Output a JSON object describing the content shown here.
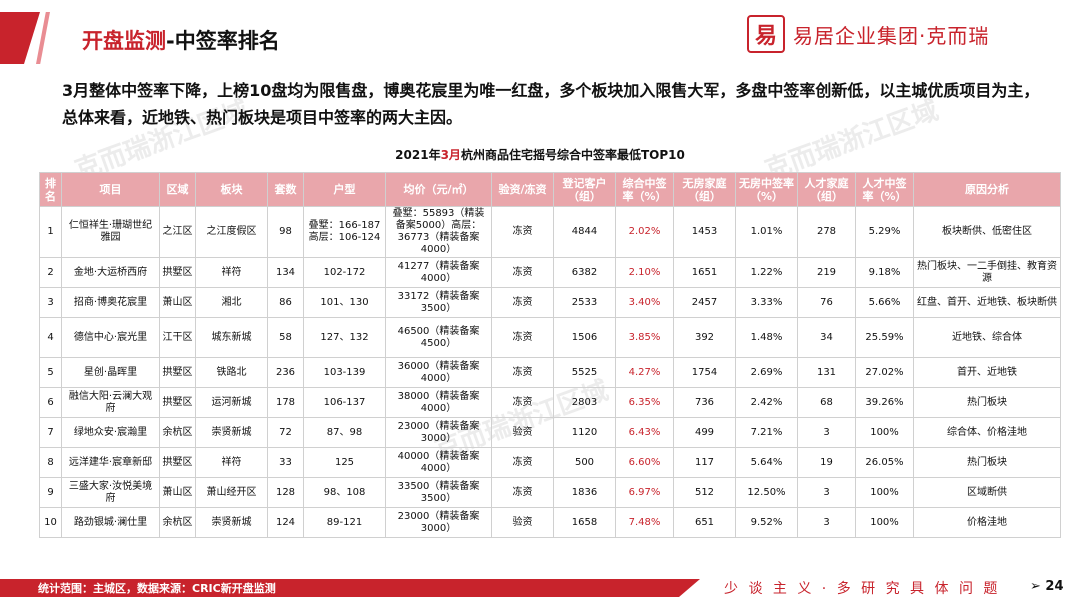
{
  "header": {
    "title_red": "开盘监测",
    "title_black": "-中签率排名",
    "logo_mark": "易",
    "logo_text": "易居企业集团·克而瑞"
  },
  "summary": "3月整体中签率下降，上榜10盘均为限售盘，博奥花宸里为唯一红盘，多个板块加入限售大军，多盘中签率创新低，以主城优质项目为主，总体来看，近地铁、热门板块是项目中签率的两大主因。",
  "table_title": {
    "prefix": "2021年",
    "month": "3月",
    "suffix": "杭州商品住宅摇号综合中签率最低TOP10"
  },
  "table": {
    "headers": [
      "排名",
      "项目",
      "区域",
      "板块",
      "套数",
      "户型",
      "均价（元/㎡）",
      "验资/冻资",
      "登记客户（组）",
      "综合中签率（%）",
      "无房家庭（组）",
      "无房中签率（%）",
      "人才家庭（组）",
      "人才中签率（%）",
      "原因分析"
    ],
    "rows": [
      [
        "1",
        "仁恒祥生·珊瑚世纪雅园",
        "之江区",
        "之江度假区",
        "98",
        "叠墅：166-187 高层：106-124",
        "叠墅：55893（精装备案5000）高层：36773（精装备案4000）",
        "冻资",
        "4844",
        "2.02%",
        "1453",
        "1.01%",
        "278",
        "5.29%",
        "板块断供、低密住区"
      ],
      [
        "2",
        "金地·大运桥西府",
        "拱墅区",
        "祥符",
        "134",
        "102-172",
        "41277（精装备案4000）",
        "冻资",
        "6382",
        "2.10%",
        "1651",
        "1.22%",
        "219",
        "9.18%",
        "热门板块、一二手倒挂、教育资源"
      ],
      [
        "3",
        "招商·博奥花宸里",
        "萧山区",
        "湘北",
        "86",
        "101、130",
        "33172（精装备案3500）",
        "冻资",
        "2533",
        "3.40%",
        "2457",
        "3.33%",
        "76",
        "5.66%",
        "红盘、首开、近地铁、板块断供"
      ],
      [
        "4",
        "德信中心·宸光里",
        "江干区",
        "城东新城",
        "58",
        "127、132",
        "46500（精装备案4500）",
        "冻资",
        "1506",
        "3.85%",
        "392",
        "1.48%",
        "34",
        "25.59%",
        "近地铁、综合体"
      ],
      [
        "5",
        "星创·晶晖里",
        "拱墅区",
        "铁路北",
        "236",
        "103-139",
        "36000（精装备案4000）",
        "冻资",
        "5525",
        "4.27%",
        "1754",
        "2.69%",
        "131",
        "27.02%",
        "首开、近地铁"
      ],
      [
        "6",
        "融信大阳·云澜大观府",
        "拱墅区",
        "运河新城",
        "178",
        "106-137",
        "38000（精装备案4000）",
        "冻资",
        "2803",
        "6.35%",
        "736",
        "2.42%",
        "68",
        "39.26%",
        "热门板块"
      ],
      [
        "7",
        "绿地众安·宸瀚里",
        "余杭区",
        "崇贤新城",
        "72",
        "87、98",
        "23000（精装备案3000）",
        "验资",
        "1120",
        "6.43%",
        "499",
        "7.21%",
        "3",
        "100%",
        "综合体、价格洼地"
      ],
      [
        "8",
        "远洋建华·宸章新邸",
        "拱墅区",
        "祥符",
        "33",
        "125",
        "40000（精装备案4000）",
        "冻资",
        "500",
        "6.60%",
        "117",
        "5.64%",
        "19",
        "26.05%",
        "热门板块"
      ],
      [
        "9",
        "三盛大家·汝悦美境府",
        "萧山区",
        "萧山经开区",
        "128",
        "98、108",
        "33500（精装备案3500）",
        "冻资",
        "1836",
        "6.97%",
        "512",
        "12.50%",
        "3",
        "100%",
        "区域断供"
      ],
      [
        "10",
        "路劲银城·澜仕里",
        "余杭区",
        "崇贤新城",
        "124",
        "89-121",
        "23000（精装备案3000）",
        "验资",
        "1658",
        "7.48%",
        "651",
        "9.52%",
        "3",
        "100%",
        "价格洼地"
      ]
    ]
  },
  "footer": {
    "source": "统计范围：主城区，数据来源：CRIC新开盘监测",
    "slogan": "少 谈 主 义 · 多 研 究 具 体 问 题",
    "page": "➢ 24"
  },
  "watermark": "克而瑞浙江区域",
  "colors": {
    "brand_red": "#c8232c",
    "header_pink": "#e9a6ab"
  }
}
